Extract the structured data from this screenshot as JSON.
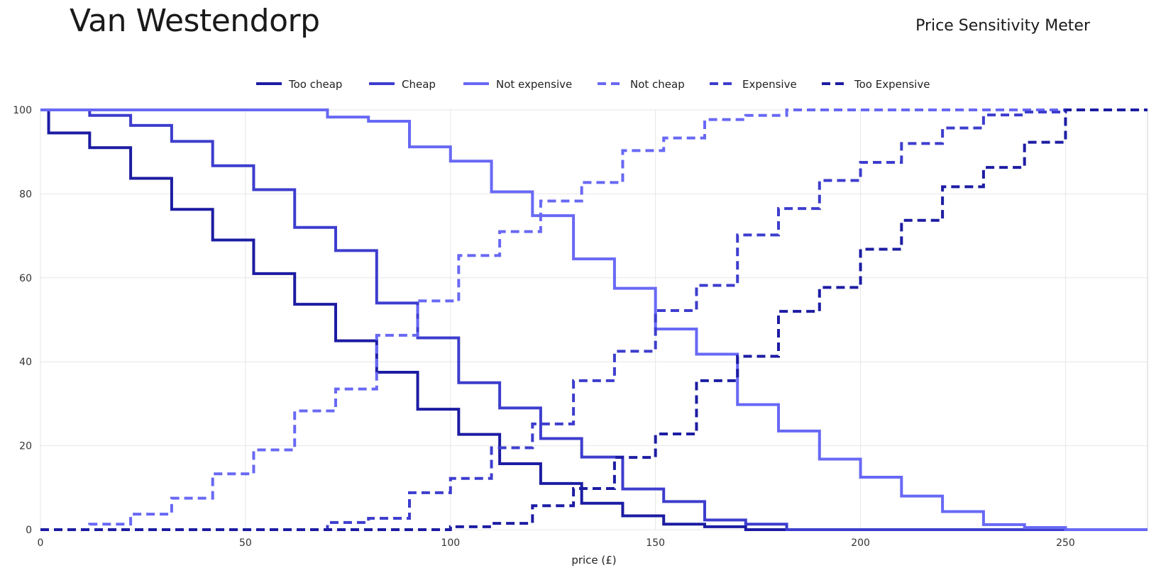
{
  "header": {
    "title": "Van Westendorp",
    "subtitle": "Price Sensitivity Meter"
  },
  "chart_data": {
    "type": "line",
    "step": true,
    "xlabel": "price (£)",
    "ylabel": "",
    "xlim": [
      0,
      270
    ],
    "ylim": [
      0,
      100
    ],
    "xticks": [
      0,
      50,
      100,
      150,
      200,
      250
    ],
    "yticks": [
      0,
      20,
      40,
      60,
      80,
      100
    ],
    "grid": true,
    "legend_position": "top",
    "series": [
      {
        "name": "Too cheap",
        "color": "#1c1ca3",
        "dash": "solid",
        "points": [
          [
            0,
            100
          ],
          [
            2,
            94.5
          ],
          [
            12,
            91
          ],
          [
            22,
            83.7
          ],
          [
            32,
            76.3
          ],
          [
            42,
            69
          ],
          [
            52,
            61
          ],
          [
            62,
            53.7
          ],
          [
            72,
            45
          ],
          [
            82,
            37.5
          ],
          [
            92,
            28.7
          ],
          [
            102,
            22.7
          ],
          [
            112,
            15.7
          ],
          [
            122,
            11
          ],
          [
            132,
            6.3
          ],
          [
            142,
            3.3
          ],
          [
            152,
            1.3
          ],
          [
            162,
            0.7
          ],
          [
            172,
            0
          ],
          [
            270,
            0
          ]
        ]
      },
      {
        "name": "Cheap",
        "color": "#3d3dce",
        "dash": "solid",
        "points": [
          [
            0,
            100
          ],
          [
            12,
            98.7
          ],
          [
            22,
            96.3
          ],
          [
            32,
            92.5
          ],
          [
            42,
            86.7
          ],
          [
            52,
            81
          ],
          [
            62,
            72
          ],
          [
            72,
            66.5
          ],
          [
            82,
            54
          ],
          [
            92,
            45.7
          ],
          [
            102,
            35
          ],
          [
            112,
            29
          ],
          [
            122,
            21.7
          ],
          [
            132,
            17.3
          ],
          [
            142,
            9.7
          ],
          [
            152,
            6.7
          ],
          [
            162,
            2.3
          ],
          [
            172,
            1.3
          ],
          [
            182,
            0
          ],
          [
            270,
            0
          ]
        ]
      },
      {
        "name": "Not expensive",
        "color": "#6868f5",
        "dash": "solid",
        "points": [
          [
            0,
            100
          ],
          [
            70,
            98.3
          ],
          [
            80,
            97.3
          ],
          [
            90,
            91.2
          ],
          [
            100,
            87.8
          ],
          [
            110,
            80.5
          ],
          [
            120,
            74.8
          ],
          [
            130,
            64.5
          ],
          [
            140,
            57.5
          ],
          [
            150,
            47.8
          ],
          [
            160,
            41.8
          ],
          [
            170,
            29.8
          ],
          [
            180,
            23.5
          ],
          [
            190,
            16.8
          ],
          [
            200,
            12.5
          ],
          [
            210,
            8
          ],
          [
            220,
            4.3
          ],
          [
            230,
            1.2
          ],
          [
            240,
            0.5
          ],
          [
            250,
            0
          ],
          [
            270,
            0
          ]
        ]
      },
      {
        "name": "Not cheap",
        "color": "#6868f5",
        "dash": "dashed",
        "points": [
          [
            0,
            0
          ],
          [
            12,
            1.3
          ],
          [
            22,
            3.7
          ],
          [
            32,
            7.5
          ],
          [
            42,
            13.3
          ],
          [
            52,
            19
          ],
          [
            62,
            28.3
          ],
          [
            72,
            33.5
          ],
          [
            82,
            46.3
          ],
          [
            92,
            54.5
          ],
          [
            102,
            65.3
          ],
          [
            112,
            71
          ],
          [
            122,
            78.3
          ],
          [
            132,
            82.7
          ],
          [
            142,
            90.3
          ],
          [
            152,
            93.3
          ],
          [
            162,
            97.7
          ],
          [
            172,
            98.7
          ],
          [
            182,
            100
          ],
          [
            270,
            100
          ]
        ]
      },
      {
        "name": "Expensive",
        "color": "#3d3dce",
        "dash": "dashed",
        "points": [
          [
            0,
            0
          ],
          [
            70,
            1.7
          ],
          [
            80,
            2.7
          ],
          [
            90,
            8.8
          ],
          [
            100,
            12.2
          ],
          [
            110,
            19.5
          ],
          [
            120,
            25.2
          ],
          [
            130,
            35.5
          ],
          [
            140,
            42.5
          ],
          [
            150,
            52.2
          ],
          [
            160,
            58.2
          ],
          [
            170,
            70.2
          ],
          [
            180,
            76.5
          ],
          [
            190,
            83.2
          ],
          [
            200,
            87.5
          ],
          [
            210,
            92
          ],
          [
            220,
            95.7
          ],
          [
            230,
            98.8
          ],
          [
            240,
            99.5
          ],
          [
            250,
            100
          ],
          [
            270,
            100
          ]
        ]
      },
      {
        "name": "Too Expensive",
        "color": "#1c1ca3",
        "dash": "dashed",
        "points": [
          [
            0,
            0
          ],
          [
            100,
            0.7
          ],
          [
            110,
            1.5
          ],
          [
            120,
            5.7
          ],
          [
            130,
            9.8
          ],
          [
            140,
            17.2
          ],
          [
            150,
            22.8
          ],
          [
            160,
            35.5
          ],
          [
            170,
            41.3
          ],
          [
            180,
            52
          ],
          [
            190,
            57.7
          ],
          [
            200,
            66.8
          ],
          [
            210,
            73.7
          ],
          [
            220,
            81.7
          ],
          [
            230,
            86.3
          ],
          [
            240,
            92.3
          ],
          [
            250,
            100
          ],
          [
            270,
            100
          ]
        ]
      }
    ]
  }
}
